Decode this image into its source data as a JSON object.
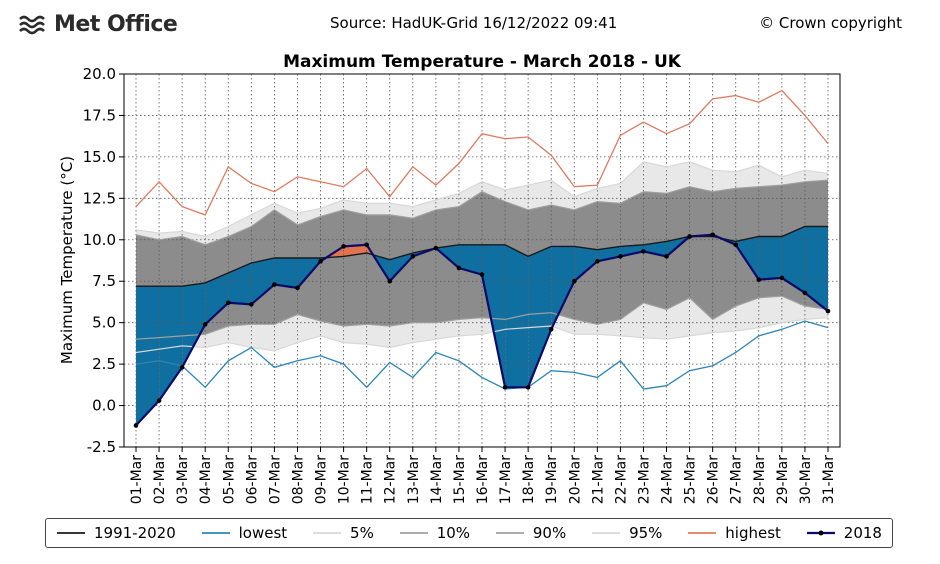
{
  "header": {
    "logo_text": "Met Office",
    "source": "Source: HadUK-Grid 16/12/2022 09:41",
    "copyright": "© Crown copyright"
  },
  "colors": {
    "avg": "#1a1a1a",
    "lowest": "#2a86b8",
    "highest": "#e07a5f",
    "band_5_95": "#e8e8e8",
    "band_10_90": "#8c8c8c",
    "line_5_95": "#d8d8d8",
    "line_10_90": "#a0a0a0",
    "fill_below": "#0f6fa0",
    "fill_above": "#e3734f",
    "series_2018": "#0a0a6a"
  },
  "chart_data": {
    "type": "line",
    "title": "Maximum Temperature - March 2018 - UK",
    "ylabel": "Maximum Temperature (°C)",
    "xlabel": "",
    "ylim": [
      -2.5,
      20.0
    ],
    "yticks": [
      "-2.5",
      "0.0",
      "2.5",
      "5.0",
      "7.5",
      "10.0",
      "12.5",
      "15.0",
      "17.5",
      "20.0"
    ],
    "grid": true,
    "legend_position": "bottom",
    "categories": [
      "01-Mar",
      "02-Mar",
      "03-Mar",
      "04-Mar",
      "05-Mar",
      "06-Mar",
      "07-Mar",
      "08-Mar",
      "09-Mar",
      "10-Mar",
      "11-Mar",
      "12-Mar",
      "13-Mar",
      "14-Mar",
      "15-Mar",
      "16-Mar",
      "17-Mar",
      "18-Mar",
      "19-Mar",
      "20-Mar",
      "21-Mar",
      "22-Mar",
      "23-Mar",
      "24-Mar",
      "25-Mar",
      "26-Mar",
      "27-Mar",
      "28-Mar",
      "29-Mar",
      "30-Mar",
      "31-Mar"
    ],
    "series": [
      {
        "name": "1991-2020",
        "values": [
          7.2,
          7.2,
          7.2,
          7.4,
          8.0,
          8.6,
          8.9,
          8.9,
          8.9,
          9.0,
          9.2,
          8.8,
          9.2,
          9.5,
          9.7,
          9.7,
          9.7,
          9.0,
          9.6,
          9.6,
          9.4,
          9.6,
          9.7,
          9.9,
          10.2,
          10.2,
          9.9,
          10.2,
          10.2,
          10.8,
          10.8
        ]
      },
      {
        "name": "lowest",
        "values": [
          2.5,
          2.7,
          2.4,
          1.1,
          2.7,
          3.5,
          2.3,
          2.7,
          3.0,
          2.5,
          1.1,
          2.6,
          1.7,
          3.2,
          2.7,
          1.7,
          1.0,
          1.1,
          2.1,
          2.0,
          1.7,
          2.7,
          1.0,
          1.2,
          2.1,
          2.4,
          3.2,
          4.2,
          4.6,
          5.1,
          4.7
        ]
      },
      {
        "name": "5%",
        "values": [
          3.2,
          3.4,
          3.6,
          3.5,
          3.8,
          3.5,
          3.3,
          3.8,
          4.2,
          3.8,
          3.7,
          3.5,
          3.8,
          4.0,
          4.2,
          4.3,
          4.6,
          4.7,
          4.8,
          4.3,
          4.3,
          4.2,
          4.1,
          4.0,
          4.2,
          4.4,
          4.5,
          4.7,
          5.0,
          5.2,
          5.3
        ]
      },
      {
        "name": "10%",
        "values": [
          4.0,
          4.1,
          4.2,
          4.3,
          4.8,
          4.9,
          4.9,
          5.5,
          5.1,
          4.8,
          4.9,
          4.8,
          5.0,
          5.0,
          5.2,
          5.3,
          5.2,
          5.5,
          5.6,
          5.2,
          4.9,
          5.2,
          6.2,
          5.8,
          6.5,
          5.2,
          6.0,
          6.5,
          6.6,
          6.0,
          5.8
        ]
      },
      {
        "name": "90%",
        "values": [
          10.3,
          10.0,
          10.2,
          9.7,
          10.2,
          10.8,
          11.8,
          10.9,
          11.4,
          11.8,
          11.5,
          11.5,
          11.3,
          11.8,
          12.0,
          12.9,
          12.3,
          11.8,
          12.1,
          11.8,
          12.3,
          12.2,
          12.9,
          12.8,
          13.2,
          12.9,
          13.1,
          13.2,
          13.3,
          13.5,
          13.6
        ]
      },
      {
        "name": "95%",
        "values": [
          10.6,
          10.4,
          10.5,
          10.2,
          10.8,
          11.5,
          12.2,
          11.6,
          11.9,
          12.4,
          12.2,
          12.2,
          12.0,
          12.4,
          12.8,
          13.5,
          13.0,
          13.3,
          13.6,
          12.6,
          13.1,
          13.4,
          14.7,
          14.4,
          14.7,
          14.2,
          14.1,
          14.5,
          13.8,
          14.2,
          14.0
        ]
      },
      {
        "name": "highest",
        "values": [
          12.0,
          13.5,
          12.0,
          11.5,
          14.4,
          13.4,
          12.9,
          13.8,
          13.5,
          13.2,
          14.3,
          12.6,
          14.4,
          13.3,
          14.6,
          16.4,
          16.1,
          16.2,
          15.1,
          13.2,
          13.3,
          16.3,
          17.1,
          16.4,
          17.0,
          18.5,
          18.7,
          18.3,
          19.0,
          17.5,
          15.8
        ]
      },
      {
        "name": "2018",
        "values": [
          -1.2,
          0.3,
          2.3,
          4.9,
          6.2,
          6.1,
          7.3,
          7.1,
          8.7,
          9.6,
          9.7,
          7.5,
          9.0,
          9.5,
          8.3,
          7.9,
          1.1,
          1.1,
          4.6,
          7.5,
          8.7,
          9.0,
          9.3,
          9.0,
          10.2,
          10.3,
          9.7,
          7.6,
          7.7,
          6.8,
          5.7
        ]
      }
    ]
  },
  "legend": [
    {
      "label": "1991-2020",
      "kind": "line",
      "color": "#1a1a1a"
    },
    {
      "label": "lowest",
      "kind": "line",
      "color": "#2a86b8"
    },
    {
      "label": "5%",
      "kind": "line",
      "color": "#d8d8d8"
    },
    {
      "label": "10%",
      "kind": "line",
      "color": "#a0a0a0"
    },
    {
      "label": "90%",
      "kind": "line",
      "color": "#a0a0a0"
    },
    {
      "label": "95%",
      "kind": "line",
      "color": "#d8d8d8"
    },
    {
      "label": "highest",
      "kind": "line",
      "color": "#e07a5f"
    },
    {
      "label": "2018",
      "kind": "marker-line",
      "color": "#0a0a6a"
    }
  ]
}
